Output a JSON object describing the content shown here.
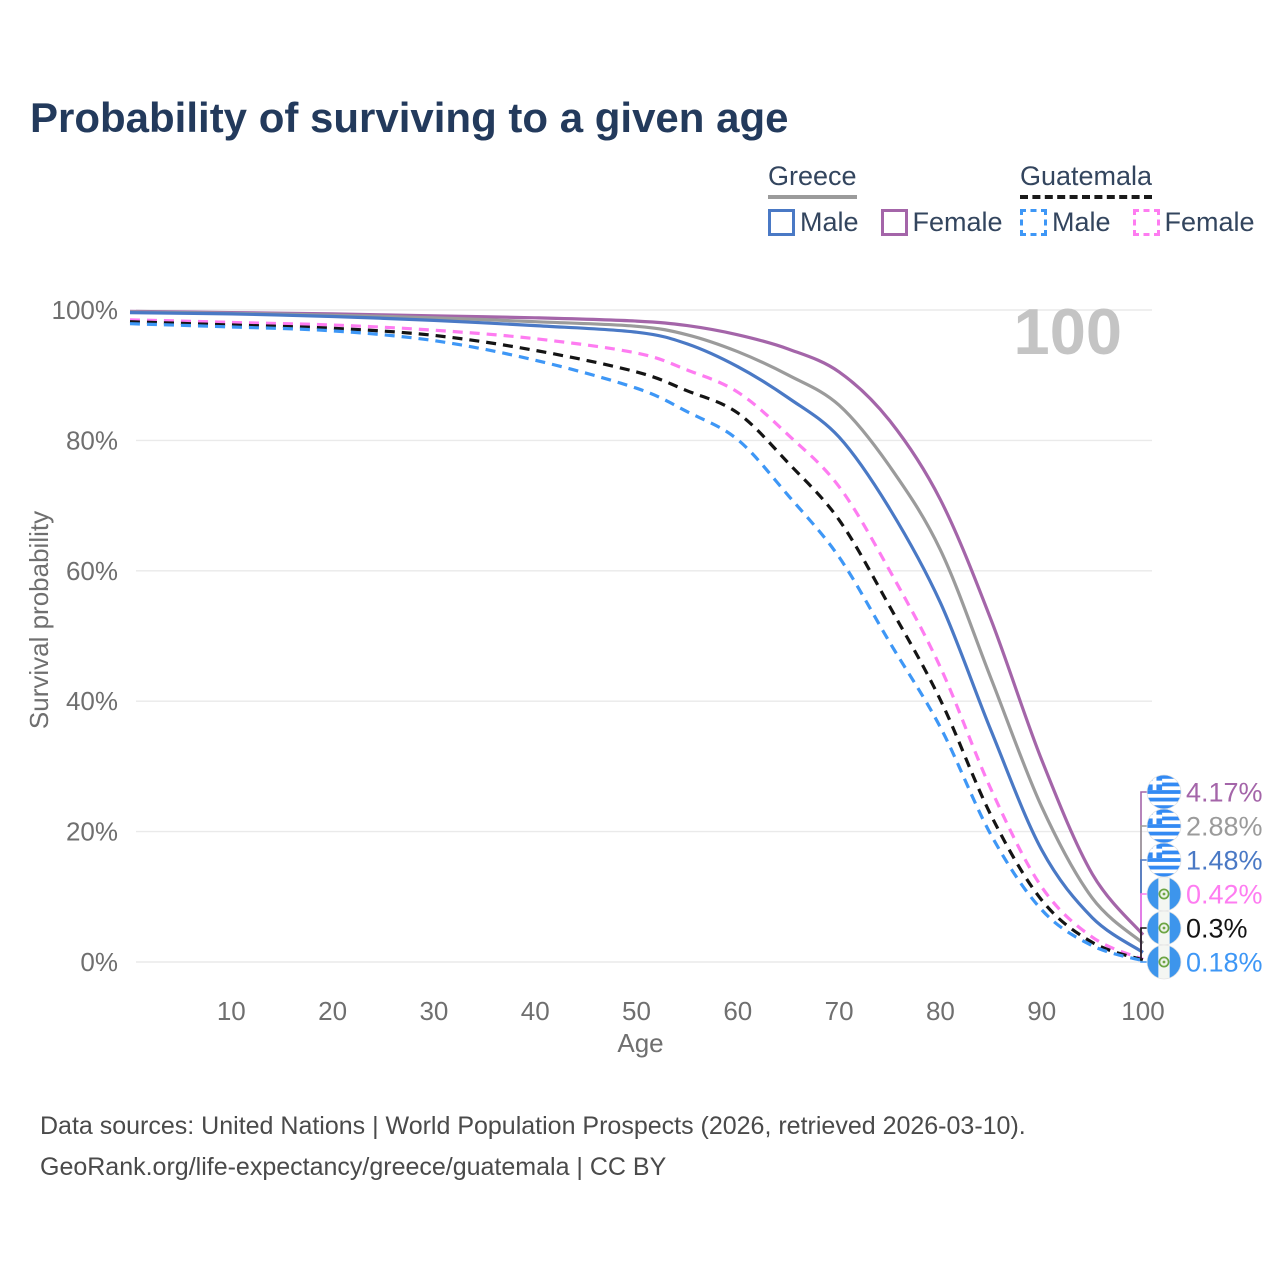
{
  "title": "Probability of surviving to a given age",
  "watermark": "100",
  "legend": {
    "groups": [
      {
        "label": "Greece",
        "underline_color": "#9b9b9b",
        "underline_style": "solid",
        "items": [
          {
            "label": "Male",
            "color": "#4a79c5",
            "style": "solid"
          },
          {
            "label": "Female",
            "color": "#a465a9",
            "style": "solid"
          }
        ]
      },
      {
        "label": "Guatemala",
        "underline_color": "#1a1a1a",
        "underline_style": "dashed",
        "items": [
          {
            "label": "Male",
            "color": "#3e97f6",
            "style": "dashed"
          },
          {
            "label": "Female",
            "color": "#fe7cf1",
            "style": "dashed"
          }
        ]
      }
    ]
  },
  "chart_data": {
    "type": "line",
    "title": "Probability of surviving to a given age",
    "xlabel": "Age",
    "ylabel": "Survival probability",
    "xlim": [
      0,
      100
    ],
    "ylim": [
      0,
      100
    ],
    "x_ticks": [
      10,
      20,
      30,
      40,
      50,
      60,
      70,
      80,
      90,
      100
    ],
    "y_ticks": [
      0,
      20,
      40,
      60,
      80,
      100
    ],
    "y_tick_suffix": "%",
    "grid": "horizontal",
    "annotation": "100",
    "ages": [
      0,
      10,
      20,
      30,
      40,
      50,
      55,
      60,
      65,
      70,
      75,
      80,
      85,
      90,
      95,
      100
    ],
    "series": [
      {
        "name": "Greece Female",
        "country": "Greece",
        "sex": "Female",
        "color": "#a465a9",
        "dash": false,
        "flag": "greece",
        "end_label": "4.17%",
        "values": [
          99.8,
          99.6,
          99.4,
          99.1,
          98.8,
          98.3,
          97.6,
          96.2,
          94.0,
          90.5,
          83.0,
          70.9,
          52.5,
          31.0,
          13.5,
          4.17
        ]
      },
      {
        "name": "Greece Total",
        "country": "Greece",
        "sex": "Both",
        "color": "#9b9b9b",
        "dash": false,
        "flag": "greece",
        "end_label": "2.88%",
        "values": [
          99.7,
          99.5,
          99.2,
          98.8,
          98.2,
          97.5,
          96.2,
          93.6,
          90.0,
          85.4,
          76.0,
          63.2,
          43.5,
          23.8,
          9.8,
          2.88
        ]
      },
      {
        "name": "Greece Male",
        "country": "Greece",
        "sex": "Male",
        "color": "#4a79c5",
        "dash": false,
        "flag": "greece",
        "end_label": "1.48%",
        "values": [
          99.6,
          99.4,
          99.0,
          98.4,
          97.6,
          96.6,
          94.8,
          91.3,
          86.5,
          80.5,
          69.5,
          55.1,
          35.5,
          17.2,
          6.8,
          1.48
        ]
      },
      {
        "name": "Guatemala Female",
        "country": "Guatemala",
        "sex": "Female",
        "color": "#fe7cf1",
        "dash": true,
        "flag": "guatemala",
        "end_label": "0.42%",
        "values": [
          98.5,
          98.1,
          97.7,
          96.9,
          95.6,
          93.4,
          90.8,
          87.4,
          80.8,
          72.9,
          60.0,
          45.2,
          26.5,
          11.5,
          3.8,
          0.42
        ]
      },
      {
        "name": "Guatemala Total",
        "country": "Guatemala",
        "sex": "Both",
        "color": "#141414",
        "dash": true,
        "flag": "guatemala",
        "end_label": "0.3%",
        "values": [
          98.2,
          97.7,
          97.2,
          96.1,
          93.8,
          90.5,
          87.6,
          84.2,
          76.5,
          67.8,
          54.5,
          40.2,
          22.5,
          9.5,
          3.0,
          0.3
        ]
      },
      {
        "name": "Guatemala Male",
        "country": "Guatemala",
        "sex": "Male",
        "color": "#3e97f6",
        "dash": true,
        "flag": "guatemala",
        "end_label": "0.18%",
        "values": [
          97.9,
          97.4,
          96.8,
          95.3,
          92.3,
          88.0,
          84.4,
          80.1,
          71.5,
          62.1,
          49.0,
          36.0,
          19.5,
          8.0,
          2.5,
          0.18
        ]
      }
    ]
  },
  "footer": {
    "line1": "Data sources: United Nations | World Population Prospects (2026, retrieved 2026-03-10).",
    "line2": "GeoRank.org/life-expectancy/greece/guatemala | CC BY"
  }
}
